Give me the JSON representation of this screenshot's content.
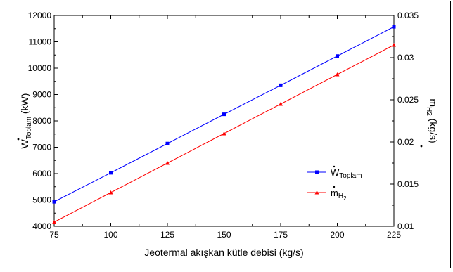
{
  "chart_data": {
    "type": "line",
    "title": "",
    "xlabel": "Jeotermal akışkan kütle debisi (kg/s)",
    "ylabel_left": {
      "main": "W",
      "sub": "Toplam",
      "unit": " (kW)"
    },
    "ylabel_right": {
      "main": "m",
      "sub": "H2",
      "unit": " (kg/s)"
    },
    "x_ticks": [
      "75",
      "100",
      "125",
      "150",
      "175",
      "200",
      "225"
    ],
    "y_left_ticks": [
      "4000",
      "5000",
      "6000",
      "7000",
      "8000",
      "9000",
      "10000",
      "11000",
      "12000"
    ],
    "y_right_ticks": [
      "0.01",
      "0.015",
      "0.02",
      "0.025",
      "0.03",
      "0.035"
    ],
    "xlim": [
      75,
      225
    ],
    "ylim_left": [
      4000,
      12000
    ],
    "ylim_right": [
      0.01,
      0.035
    ],
    "grid": false,
    "legend_position": "right-middle",
    "series": [
      {
        "name": "W_Toplam",
        "legend_main": "W",
        "legend_sub": "Toplam",
        "axis": "left",
        "color": "#0000ff",
        "marker": "square",
        "x": [
          75,
          100,
          125,
          150,
          175,
          200,
          225
        ],
        "y": [
          4930,
          6030,
          7140,
          8250,
          9350,
          10460,
          11570
        ]
      },
      {
        "name": "m_H2",
        "legend_main": "m",
        "legend_sub": "H",
        "legend_sub2": "2",
        "axis": "right",
        "color": "#ff0000",
        "marker": "triangle",
        "x": [
          75,
          100,
          125,
          150,
          175,
          200,
          225
        ],
        "y": [
          0.0105,
          0.014,
          0.0175,
          0.021,
          0.0245,
          0.028,
          0.0315
        ]
      }
    ]
  }
}
